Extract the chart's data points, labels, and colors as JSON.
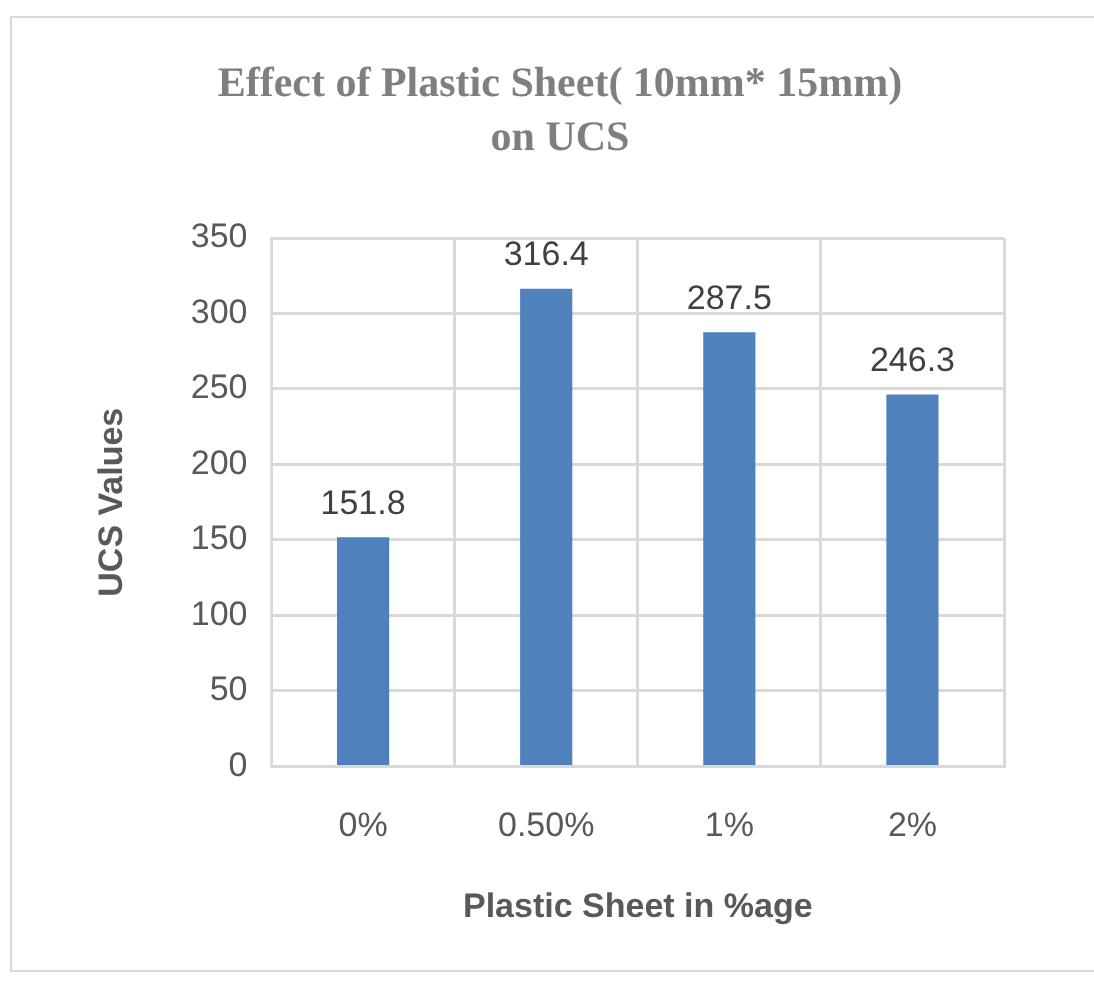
{
  "chart_data": {
    "type": "bar",
    "title": "Effect of Plastic Sheet( 10mm* 15mm) on UCS",
    "xlabel": "Plastic Sheet in %age",
    "ylabel": "UCS Values",
    "categories": [
      "0%",
      "0.50%",
      "1%",
      "2%"
    ],
    "values": [
      151.8,
      316.4,
      287.5,
      246.3
    ],
    "color": "#4f81bd",
    "ylim": [
      0,
      350
    ],
    "yticks": [
      0,
      50,
      100,
      150,
      200,
      250,
      300,
      350
    ],
    "grid": true,
    "data_labels": true
  }
}
